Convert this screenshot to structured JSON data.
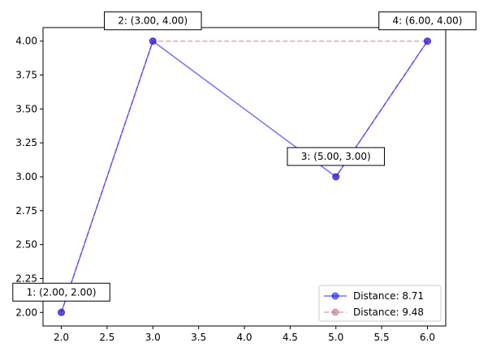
{
  "chart_data": {
    "type": "line",
    "title": "",
    "xlabel": "",
    "ylabel": "",
    "xlim": [
      1.8,
      6.2
    ],
    "ylim": [
      1.9,
      4.1
    ],
    "grid": false,
    "legend_position": "lower-right",
    "x_ticks": [
      "2.0",
      "2.5",
      "3.0",
      "3.5",
      "4.0",
      "4.5",
      "5.0",
      "5.5",
      "6.0"
    ],
    "y_ticks": [
      "2.00",
      "2.25",
      "2.50",
      "2.75",
      "3.00",
      "3.25",
      "3.50",
      "3.75",
      "4.00"
    ],
    "series": [
      {
        "name": "Distance: 8.71",
        "color": "#0000ff",
        "style": "solid",
        "marker": "circle",
        "x": [
          2,
          3,
          5,
          6
        ],
        "y": [
          2,
          4,
          3,
          4
        ]
      },
      {
        "name": "Distance: 9.48",
        "color": "#c06080",
        "style": "dashed",
        "marker": "circle",
        "x": [
          2,
          3,
          6,
          5
        ],
        "y": [
          2,
          4,
          4,
          3
        ]
      }
    ],
    "annotations": [
      {
        "text": "1: (2.00, 2.00)",
        "x": 2,
        "y": 2
      },
      {
        "text": "2: (3.00, 4.00)",
        "x": 3,
        "y": 4
      },
      {
        "text": "3: (5.00, 3.00)",
        "x": 5,
        "y": 3
      },
      {
        "text": "4: (6.00, 4.00)",
        "x": 6,
        "y": 4
      }
    ]
  }
}
